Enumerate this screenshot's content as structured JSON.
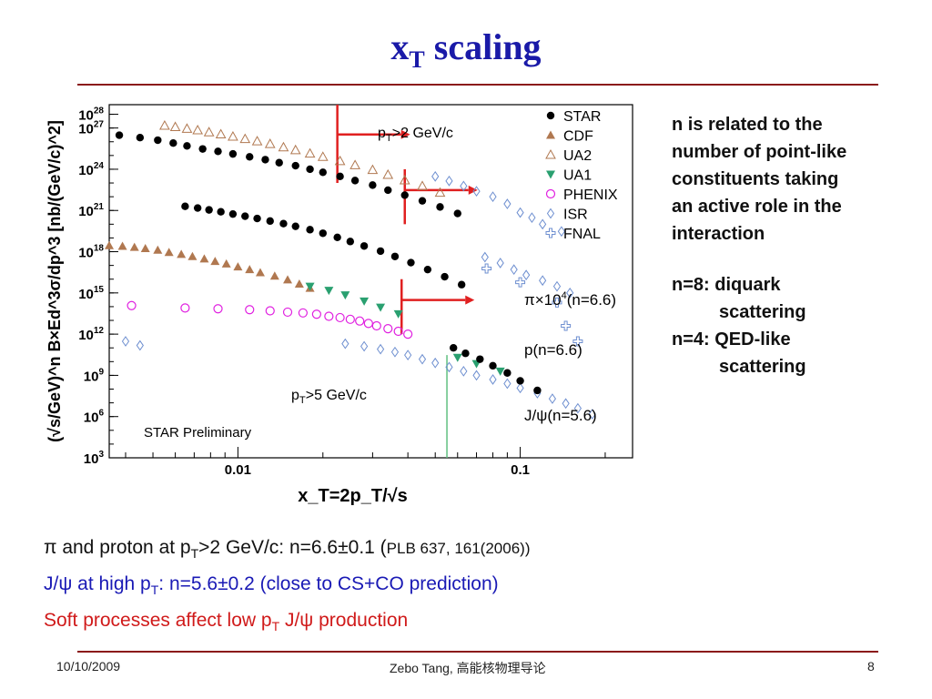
{
  "slide": {
    "title_main": "x",
    "title_sub": "T",
    "title_rest": " scaling",
    "notes": [
      "n is related to the",
      "number of point-like",
      "constituents taking",
      "an active role in the",
      "interaction"
    ],
    "scenario": [
      {
        "label": "n=8: diquark",
        "cont": "scattering"
      },
      {
        "label": "n=4: QED-like",
        "cont": "scattering"
      }
    ],
    "bottom_lines": [
      {
        "pre": "π and proton at p",
        "sub": "T",
        "post": ">2 GeV/c:  n=6.6±0.1   (",
        "small": "PLB 637, 161(2006))",
        "color": "#111111"
      },
      {
        "pre": "J/ψ at high p",
        "sub": "T",
        "post": ": n=5.6±0.2 (close to CS+CO prediction)",
        "small": "",
        "color": "#1a1ab5"
      },
      {
        "pre": "Soft processes affect low p",
        "sub": "T",
        "post": " J/ψ production",
        "small": "",
        "color": "#d01a1a"
      }
    ],
    "footer": {
      "date": "10/10/2009",
      "author": "Zebo Tang, 高能核物理导论",
      "page": "8"
    }
  },
  "chart_data": {
    "type": "scatter",
    "xscale": "log",
    "yscale": "log",
    "xlim": [
      0.0035,
      0.25
    ],
    "ylim": [
      1000,
      5e+28
    ],
    "xlabel": "x_T=2p_T/√s",
    "ylabel": "(√s/GeV)^n B×Ed^3σ/dp^3 [nb/(GeV/c)^2]",
    "xticks": [
      {
        "v": 0.01,
        "label": "0.01"
      },
      {
        "v": 0.1,
        "label": "0.1"
      }
    ],
    "yticks": [
      {
        "v": 1000.0,
        "label": "10",
        "exp": "3"
      },
      {
        "v": 1000000.0,
        "label": "10",
        "exp": "6"
      },
      {
        "v": 1000000000.0,
        "label": "10",
        "exp": "9"
      },
      {
        "v": 1000000000000.0,
        "label": "10",
        "exp": "12"
      },
      {
        "v": 1000000000000000.0,
        "label": "10",
        "exp": "15"
      },
      {
        "v": 1e+18,
        "label": "10",
        "exp": "18"
      },
      {
        "v": 1e+21,
        "label": "10",
        "exp": "21"
      },
      {
        "v": 1e+24,
        "label": "10",
        "exp": "24"
      },
      {
        "v": 1e+27,
        "label": "10",
        "exp": "27"
      },
      {
        "v": 1e+28,
        "label": "10",
        "exp": "28"
      }
    ],
    "legend": [
      {
        "name": "STAR",
        "marker": "dot",
        "color": "#000000"
      },
      {
        "name": "CDF",
        "marker": "tri",
        "color": "#b07850"
      },
      {
        "name": "UA2",
        "marker": "tri-open",
        "color": "#b07850"
      },
      {
        "name": "UA1",
        "marker": "tri-down",
        "color": "#2aa070"
      },
      {
        "name": "PHENIX",
        "marker": "circle-open",
        "color": "#e020e0"
      },
      {
        "name": "ISR",
        "marker": "diamond-open",
        "color": "#6e8fd0"
      },
      {
        "name": "FNAL",
        "marker": "cross-open",
        "color": "#6e8fd0"
      }
    ],
    "annotations": {
      "pt2": "p_T>2 GeV/c",
      "pt5": "p_T>5 GeV/c",
      "preliminary": "STAR Preliminary",
      "curve_pi": "π×10^4(n=6.6)",
      "curve_p": "p(n=6.6)",
      "curve_jpsi": "J/ψ(n=5.6)"
    },
    "cut_lines": [
      {
        "x": 0.0225,
        "y_top": 5e+28,
        "y_bottom": 1e+23
      },
      {
        "x": 0.039,
        "y_top": 1e+24,
        "y_bottom": 1e+20
      },
      {
        "x": 0.038,
        "y_top": 1e+16,
        "y_bottom": 1000000000000.0
      }
    ],
    "series": [
      {
        "name": "STAR",
        "marker": "dot",
        "color": "#000000",
        "points": [
          [
            0.0038,
            3e+26
          ],
          [
            0.0045,
            2e+26
          ],
          [
            0.0052,
            1.3e+26
          ],
          [
            0.0059,
            8e+25
          ],
          [
            0.0066,
            5e+25
          ],
          [
            0.0075,
            3e+25
          ],
          [
            0.0085,
            2e+25
          ],
          [
            0.0096,
            1.3e+25
          ],
          [
            0.011,
            8e+24
          ],
          [
            0.0125,
            5e+24
          ],
          [
            0.014,
            3e+24
          ],
          [
            0.016,
            1.8e+24
          ],
          [
            0.018,
            1e+24
          ],
          [
            0.02,
            6e+23
          ],
          [
            0.023,
            3e+23
          ],
          [
            0.026,
            1.5e+23
          ],
          [
            0.03,
            7e+22
          ],
          [
            0.034,
            3e+22
          ],
          [
            0.039,
            1.3e+22
          ],
          [
            0.045,
            5e+21
          ],
          [
            0.052,
            1.8e+21
          ],
          [
            0.06,
            6e+20
          ],
          [
            0.0065,
            2e+21
          ],
          [
            0.0072,
            1.5e+21
          ],
          [
            0.0079,
            1.1e+21
          ],
          [
            0.0087,
            8e+20
          ],
          [
            0.0096,
            5.5e+20
          ],
          [
            0.0106,
            3.8e+20
          ],
          [
            0.0117,
            2.6e+20
          ],
          [
            0.013,
            1.7e+20
          ],
          [
            0.0145,
            1.1e+20
          ],
          [
            0.016,
            7e+19
          ],
          [
            0.018,
            4e+19
          ],
          [
            0.02,
            2.2e+19
          ],
          [
            0.0225,
            1.1e+19
          ],
          [
            0.025,
            5.5e+18
          ],
          [
            0.028,
            2.6e+18
          ],
          [
            0.032,
            1.1e+18
          ],
          [
            0.036,
            4.5e+17
          ],
          [
            0.041,
            1.6e+17
          ],
          [
            0.047,
            5e+16
          ],
          [
            0.054,
            1.5e+16
          ],
          [
            0.062,
            4000000000000000.0
          ],
          [
            0.058,
            100000000000.0
          ],
          [
            0.064,
            40000000000.0
          ],
          [
            0.072,
            15000000000.0
          ],
          [
            0.08,
            5000000000.0
          ],
          [
            0.09,
            1500000000.0
          ],
          [
            0.1,
            400000000.0
          ],
          [
            0.115,
            80000000.0
          ]
        ]
      },
      {
        "name": "CDF",
        "marker": "tri",
        "color": "#b07850",
        "points": [
          [
            0.0035,
            2.8e+18
          ],
          [
            0.0039,
            2.5e+18
          ],
          [
            0.0043,
            2.1e+18
          ],
          [
            0.0047,
            1.7e+18
          ],
          [
            0.0052,
            1.3e+18
          ],
          [
            0.0057,
            9e+17
          ],
          [
            0.0063,
            6.5e+17
          ],
          [
            0.0069,
            4.5e+17
          ],
          [
            0.0076,
            3e+17
          ],
          [
            0.0083,
            2e+17
          ],
          [
            0.0091,
            1.3e+17
          ],
          [
            0.01,
            8e+16
          ],
          [
            0.011,
            5e+16
          ],
          [
            0.012,
            3e+16
          ],
          [
            0.0135,
            1.7e+16
          ],
          [
            0.015,
            9000000000000000.0
          ],
          [
            0.0165,
            4500000000000000.0
          ],
          [
            0.018,
            2200000000000000.0
          ]
        ]
      },
      {
        "name": "UA2",
        "marker": "tri-open",
        "color": "#b07850",
        "points": [
          [
            0.0055,
            1.5e+27
          ],
          [
            0.006,
            1.2e+27
          ],
          [
            0.0066,
            9e+26
          ],
          [
            0.0072,
            7e+26
          ],
          [
            0.0079,
            5e+26
          ],
          [
            0.0087,
            3.5e+26
          ],
          [
            0.0096,
            2.4e+26
          ],
          [
            0.0106,
            1.6e+26
          ],
          [
            0.0117,
            1.1e+26
          ],
          [
            0.013,
            7e+25
          ],
          [
            0.0145,
            4e+25
          ],
          [
            0.016,
            2.5e+25
          ],
          [
            0.018,
            1.4e+25
          ],
          [
            0.02,
            8e+24
          ],
          [
            0.023,
            4e+24
          ],
          [
            0.026,
            2e+24
          ],
          [
            0.03,
            9e+23
          ],
          [
            0.034,
            4e+23
          ],
          [
            0.039,
            1.6e+23
          ],
          [
            0.045,
            6e+22
          ],
          [
            0.052,
            2e+22
          ]
        ]
      },
      {
        "name": "UA1",
        "marker": "tri-down",
        "color": "#2aa070",
        "points": [
          [
            0.018,
            3000000000000000.0
          ],
          [
            0.021,
            1500000000000000.0
          ],
          [
            0.024,
            700000000000000.0
          ],
          [
            0.028,
            250000000000000.0
          ],
          [
            0.032,
            90000000000000.0
          ],
          [
            0.037,
            30000000000000.0
          ],
          [
            0.06,
            20000000000.0
          ],
          [
            0.07,
            7000000000.0
          ],
          [
            0.085,
            2000000000.0
          ]
        ]
      },
      {
        "name": "PHENIX",
        "marker": "circle-open",
        "color": "#e020e0",
        "points": [
          [
            0.0042,
            120000000000000.0
          ],
          [
            0.0065,
            80000000000000.0
          ],
          [
            0.0085,
            70000000000000.0
          ],
          [
            0.011,
            60000000000000.0
          ],
          [
            0.013,
            50000000000000.0
          ],
          [
            0.015,
            40000000000000.0
          ],
          [
            0.017,
            35000000000000.0
          ],
          [
            0.019,
            28000000000000.0
          ],
          [
            0.021,
            20000000000000.0
          ],
          [
            0.023,
            16000000000000.0
          ],
          [
            0.025,
            12000000000000.0
          ],
          [
            0.027,
            9000000000000.0
          ],
          [
            0.029,
            6000000000000.0
          ],
          [
            0.031,
            4000000000000.0
          ],
          [
            0.034,
            2500000000000.0
          ],
          [
            0.037,
            1600000000000.0
          ],
          [
            0.04,
            1000000000000.0
          ]
        ]
      },
      {
        "name": "ISR",
        "marker": "diamond-open",
        "color": "#6e8fd0",
        "points": [
          [
            0.05,
            3e+23
          ],
          [
            0.056,
            1.4e+23
          ],
          [
            0.063,
            6e+22
          ],
          [
            0.07,
            2.5e+22
          ],
          [
            0.08,
            1e+22
          ],
          [
            0.09,
            3e+21
          ],
          [
            0.1,
            7e+20
          ],
          [
            0.11,
            3e+20
          ],
          [
            0.12,
            1e+20
          ],
          [
            0.14,
            3e+19
          ],
          [
            0.075,
            4e+17
          ],
          [
            0.085,
            1.5e+17
          ],
          [
            0.095,
            5e+16
          ],
          [
            0.105,
            2e+16
          ],
          [
            0.12,
            8000000000000000.0
          ],
          [
            0.135,
            3000000000000000.0
          ],
          [
            0.15,
            1000000000000000.0
          ],
          [
            0.004,
            300000000000.0
          ],
          [
            0.0045,
            150000000000.0
          ],
          [
            0.024,
            200000000000.0
          ],
          [
            0.028,
            130000000000.0
          ],
          [
            0.032,
            80000000000.0
          ],
          [
            0.036,
            50000000000.0
          ],
          [
            0.04,
            30000000000.0
          ],
          [
            0.045,
            15000000000.0
          ],
          [
            0.05,
            8000000000.0
          ],
          [
            0.056,
            4000000000.0
          ],
          [
            0.063,
            2000000000.0
          ],
          [
            0.07,
            1000000000.0
          ],
          [
            0.08,
            500000000.0
          ],
          [
            0.09,
            250000000.0
          ],
          [
            0.1,
            120000000.0
          ],
          [
            0.115,
            50000000.0
          ],
          [
            0.13,
            20000000.0
          ],
          [
            0.145,
            9000000.0
          ],
          [
            0.16,
            4000000.0
          ],
          [
            0.18,
            1500000.0
          ]
        ]
      },
      {
        "name": "FNAL",
        "marker": "cross-open",
        "color": "#6e8fd0",
        "points": [
          [
            0.076,
            6e+16
          ],
          [
            0.1,
            6000000000000000.0
          ],
          [
            0.135,
            200000000000000.0
          ],
          [
            0.145,
            4000000000000.0
          ],
          [
            0.16,
            300000000000.0
          ]
        ]
      }
    ]
  }
}
